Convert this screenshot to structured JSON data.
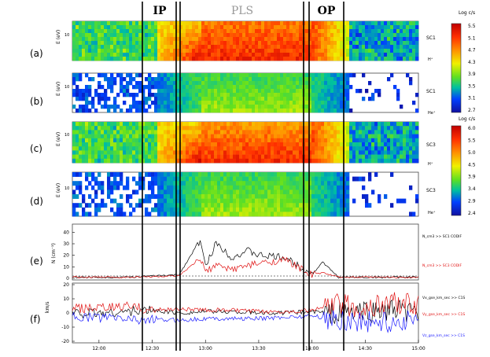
{
  "chart_data": [
    {
      "type": "heatmap",
      "panel_letter": "(a)",
      "ylabel": "E (eV)",
      "ytick_label": "10",
      "species": "H⁺",
      "spacecraft": "SC1",
      "colorbar": {
        "label": "Log c/s",
        "ticks": [
          "5.5",
          "5.1",
          "4.7",
          "4.3",
          "3.9",
          "3.5",
          "3.1",
          "2.7"
        ]
      }
    },
    {
      "type": "heatmap",
      "panel_letter": "(b)",
      "ylabel": "E (eV)",
      "ytick_label": "10",
      "species": "He⁺",
      "spacecraft": "SC1"
    },
    {
      "type": "heatmap",
      "panel_letter": "(c)",
      "ylabel": "E (eV)",
      "ytick_label": "10",
      "species": "H⁺",
      "spacecraft": "SC3",
      "colorbar": {
        "label": "Log c/s",
        "ticks": [
          "6.0",
          "5.5",
          "5.0",
          "4.5",
          "3.9",
          "3.4",
          "2.9",
          "2.4"
        ]
      }
    },
    {
      "type": "heatmap",
      "panel_letter": "(d)",
      "ylabel": "E (eV)",
      "ytick_label": "10",
      "species": "He⁺",
      "spacecraft": "SC3"
    },
    {
      "type": "line",
      "panel_letter": "(e)",
      "ylabel": "N (cm⁻³)",
      "ylim": [
        0,
        45
      ],
      "yticks": [
        "40",
        "30",
        "20",
        "10",
        "0"
      ],
      "x": [
        12.25,
        12.5,
        12.75,
        12.95,
        13.0,
        13.1,
        13.25,
        13.4,
        13.5,
        13.75,
        14.0,
        14.1,
        14.25,
        14.5,
        14.75,
        15.0
      ],
      "series": [
        {
          "name": "N_cm3 >> SC1 CODIF",
          "color": "#000000",
          "values": [
            1,
            2,
            3,
            33,
            10,
            31,
            18,
            24,
            20,
            18,
            4,
            14,
            1,
            1,
            1,
            1
          ]
        },
        {
          "name": "N_cm3 >> SC3 CODIF",
          "color": "#e01010",
          "values": [
            1,
            1.5,
            2,
            17,
            6,
            11,
            8,
            11,
            13,
            16,
            3,
            5,
            1,
            1,
            1,
            1
          ]
        }
      ]
    },
    {
      "type": "line",
      "panel_letter": "(f)",
      "ylabel": "km/s",
      "ylim": [
        -20,
        20
      ],
      "yticks": [
        "20",
        "10",
        "0",
        "-10",
        "-20"
      ],
      "x": [
        12.0,
        12.25,
        12.5,
        12.75,
        13.0,
        13.25,
        13.5,
        13.75,
        14.0,
        14.25,
        14.5,
        14.75,
        15.0
      ],
      "xticks": [
        "12:00",
        "12:30",
        "13:00",
        "13:30",
        "14:00",
        "14:30",
        "15:00"
      ],
      "series": [
        {
          "name": "Vx_gse_km_sec >> C1S",
          "color": "#000000",
          "values": [
            0,
            1,
            2,
            0,
            1,
            1,
            0,
            0,
            1,
            0,
            1,
            2,
            0
          ]
        },
        {
          "name": "Vy_gse_km_sec >> C1S",
          "color": "#e01010",
          "values": [
            3,
            5,
            2,
            3,
            2,
            2,
            1,
            1,
            2,
            6,
            3,
            8,
            5
          ]
        },
        {
          "name": "Vz_gse_km_sec >> C1S",
          "color": "#1a1aff",
          "values": [
            -3,
            -4,
            -5,
            -5,
            -4,
            -4,
            -4,
            -3,
            -2,
            -5,
            -6,
            -7,
            -4
          ]
        }
      ]
    }
  ],
  "regions": [
    "IP",
    "PLS",
    "OP"
  ]
}
